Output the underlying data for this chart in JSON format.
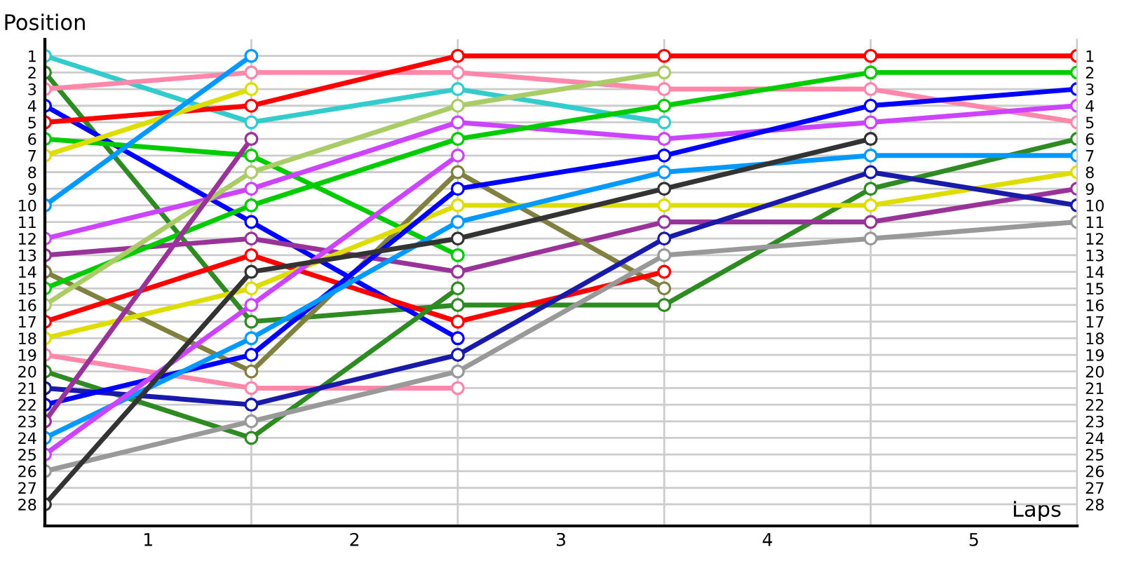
{
  "chart_data": {
    "type": "line",
    "xlabel": "Laps",
    "ylabel": "Position",
    "x": [
      0,
      1,
      2,
      3,
      4,
      5
    ],
    "xlim": [
      0,
      5
    ],
    "ylim": [
      29.3,
      0
    ],
    "y2lim": [
      29.3,
      0
    ],
    "xticks": [
      {
        "value": 0,
        "label": null
      },
      {
        "value": 1,
        "label": null
      },
      {
        "value": 2,
        "label": null
      },
      {
        "value": 3,
        "label": null
      },
      {
        "value": 4,
        "label": null
      },
      {
        "value": 5,
        "label": null
      },
      {
        "value": 0.5,
        "label": "1"
      },
      {
        "value": 1.5,
        "label": "2"
      },
      {
        "value": 2.5,
        "label": "3"
      },
      {
        "value": 3.5,
        "label": "4"
      },
      {
        "value": 4.5,
        "label": "5"
      }
    ],
    "yticks": [
      1,
      2,
      3,
      4,
      5,
      6,
      7,
      8,
      9,
      10,
      11,
      12,
      13,
      14,
      15,
      16,
      17,
      18,
      19,
      20,
      21,
      22,
      23,
      24,
      25,
      26,
      27,
      28
    ],
    "y2ticks": [
      1,
      2,
      3,
      4,
      5,
      6,
      7,
      8,
      9,
      10,
      11,
      12,
      13,
      14,
      15,
      16,
      17,
      18,
      19,
      20,
      21,
      22,
      23,
      24,
      25,
      26,
      27,
      28
    ],
    "grid": true,
    "marker": "circle",
    "line_style": "solid",
    "legend": false,
    "series": [
      {
        "color": "#33cccc",
        "values": [
          1,
          5,
          3,
          5,
          null,
          null
        ]
      },
      {
        "color": "#2e8b22",
        "values": [
          2,
          17,
          16,
          16,
          9,
          6
        ]
      },
      {
        "color": "#ff88aa",
        "values": [
          3,
          2,
          2,
          3,
          3,
          5
        ]
      },
      {
        "color": "#0000ff",
        "values": [
          4,
          11,
          18,
          null,
          null,
          null
        ]
      },
      {
        "color": "#ff0000",
        "values": [
          5,
          4,
          1,
          1,
          1,
          1
        ]
      },
      {
        "color": "#00cc00",
        "values": [
          6,
          7,
          13,
          null,
          null,
          null
        ]
      },
      {
        "color": "#dddd00",
        "values": [
          7,
          3,
          null,
          null,
          null,
          null
        ]
      },
      {
        "color": "#0099ff",
        "values": [
          10,
          1,
          null,
          null,
          null,
          null
        ]
      },
      {
        "color": "#cc44ff",
        "values": [
          12,
          9,
          5,
          6,
          5,
          4
        ]
      },
      {
        "color": "#993399",
        "values": [
          13,
          12,
          14,
          11,
          11,
          9
        ]
      },
      {
        "color": "#808040",
        "values": [
          14,
          20,
          8,
          15,
          null,
          null
        ]
      },
      {
        "color": "#00cc00",
        "values": [
          15,
          10,
          6,
          4,
          2,
          2
        ]
      },
      {
        "color": "#aacc66",
        "values": [
          16,
          8,
          4,
          2,
          null,
          null
        ]
      },
      {
        "color": "#ff0000",
        "values": [
          17,
          13,
          17,
          14,
          null,
          null
        ]
      },
      {
        "color": "#dddd00",
        "values": [
          18,
          15,
          10,
          10,
          10,
          8
        ]
      },
      {
        "color": "#ff88aa",
        "values": [
          19,
          21,
          21,
          null,
          null,
          null
        ]
      },
      {
        "color": "#2e8b22",
        "values": [
          20,
          24,
          15,
          null,
          null,
          null
        ]
      },
      {
        "color": "#1a1aaa",
        "values": [
          21,
          22,
          19,
          12,
          8,
          10
        ]
      },
      {
        "color": "#0000ff",
        "values": [
          22,
          19,
          9,
          7,
          4,
          3
        ]
      },
      {
        "color": "#993399",
        "values": [
          23,
          6,
          null,
          null,
          null,
          null
        ]
      },
      {
        "color": "#0099ff",
        "values": [
          24,
          18,
          11,
          8,
          7,
          7
        ]
      },
      {
        "color": "#cc44ff",
        "values": [
          25,
          16,
          7,
          null,
          null,
          null
        ]
      },
      {
        "color": "#999999",
        "values": [
          26,
          23,
          20,
          13,
          12,
          11
        ]
      },
      {
        "color": "#333333",
        "values": [
          28,
          14,
          12,
          9,
          6,
          null
        ]
      }
    ]
  }
}
